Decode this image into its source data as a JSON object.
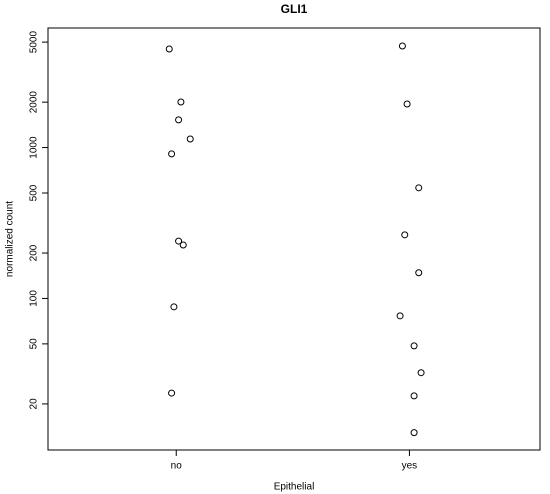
{
  "chart_data": {
    "type": "scatter",
    "title": "GLI1",
    "x_label": "Epithelial",
    "y_label": "normalized count",
    "log_y": true,
    "color": "#000000",
    "xlim": [
      0.45,
      2.56
    ],
    "xticks": [
      {
        "value": 1,
        "label": "no"
      },
      {
        "value": 2,
        "label": "yes"
      }
    ],
    "ylim": [
      9.9,
      6200
    ],
    "yticks": [
      20,
      50,
      100,
      200,
      500,
      1000,
      2000,
      5000
    ],
    "x": [
      0.97,
      1.02,
      1.01,
      1.06,
      0.98,
      1.01,
      1.03,
      0.99,
      0.98,
      1.97,
      1.99,
      2.04,
      1.98,
      2.04,
      1.96,
      2.02,
      2.05,
      2.02,
      2.02
    ],
    "values": [
      4500,
      2005,
      1525,
      1140,
      908,
      240,
      226,
      88,
      23.6,
      4710,
      1945,
      541,
      264,
      148,
      76.7,
      48.5,
      32.2,
      22.6,
      12.9
    ]
  }
}
